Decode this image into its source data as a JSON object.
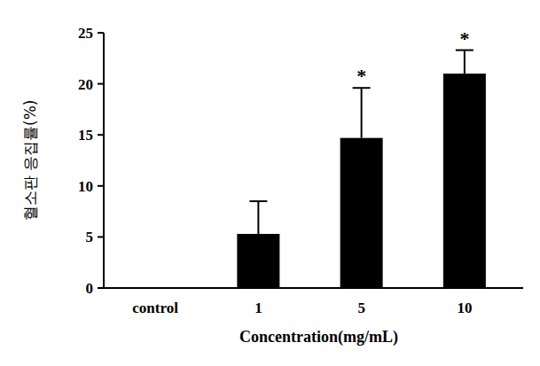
{
  "chart_data": {
    "type": "bar",
    "x_label": "Concentration(mg/mL)",
    "y_label": "혈소판 응집률(%)",
    "categories": [
      "control",
      "1",
      "5",
      "10"
    ],
    "values": [
      0,
      5.3,
      14.7,
      21.0
    ],
    "errors": [
      0,
      3.2,
      4.9,
      2.3
    ],
    "significance": [
      null,
      null,
      "*",
      "*"
    ],
    "color": "#000000",
    "ylim": [
      0,
      25
    ],
    "yticks": [
      0,
      5,
      10,
      15,
      20,
      25
    ],
    "grid": false
  }
}
